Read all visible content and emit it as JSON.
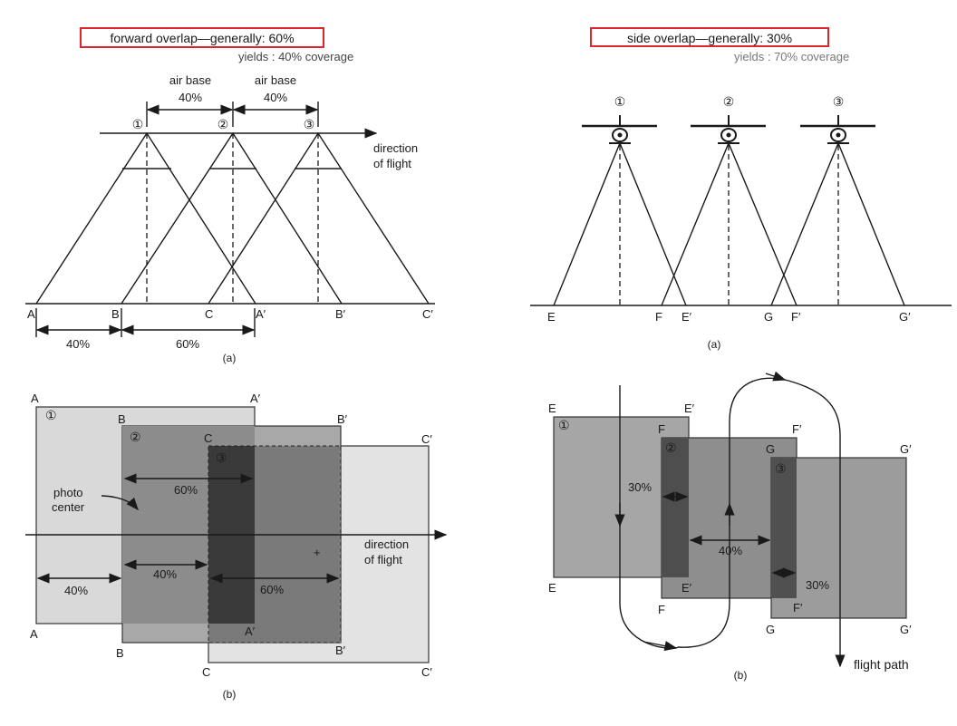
{
  "left_diagram": {
    "header": {
      "highlight": "forward overlap—generally: 60%",
      "subtitle": "yields : 40% coverage"
    },
    "part_a": {
      "air_base_label": "air base",
      "air_base_value": "40%",
      "station_markers": [
        "①",
        "②",
        "③"
      ],
      "direction_label": [
        "direction",
        "of flight"
      ],
      "ground_points": [
        "A",
        "B",
        "C",
        "A′",
        "B′",
        "C′"
      ],
      "dim_40": "40%",
      "dim_60": "60%",
      "caption": "(a)"
    },
    "part_b": {
      "corner_labels": {
        "photo1": [
          "A",
          "A′",
          "A",
          "A′"
        ],
        "photo2": [
          "B",
          "B′",
          "B",
          "B′"
        ],
        "photo3": [
          "C",
          "C′",
          "C",
          "C′"
        ]
      },
      "photo_numbers": [
        "①",
        "②",
        "③"
      ],
      "photo_center_label": [
        "photo",
        "center"
      ],
      "pct_60_top": "60%",
      "pct_40_left": "40%",
      "pct_40_mid": "40%",
      "pct_60_right": "60%",
      "direction_label": [
        "direction",
        "of flight"
      ],
      "plus_mark": "+",
      "caption": "(b)"
    }
  },
  "right_diagram": {
    "header": {
      "highlight": "side overlap—generally: 30%",
      "subtitle": "yields : 70% coverage"
    },
    "part_a": {
      "station_markers": [
        "①",
        "②",
        "③"
      ],
      "ground_points": [
        "E",
        "F",
        "E′",
        "G",
        "F′",
        "G′"
      ],
      "caption": "(a)"
    },
    "part_b": {
      "corner_labels": [
        "E",
        "E′",
        "E",
        "E′",
        "F",
        "F′",
        "F",
        "F′",
        "G",
        "G′",
        "G",
        "G′"
      ],
      "photo_numbers": [
        "①",
        "②",
        "③"
      ],
      "pct_30_left": "30%",
      "pct_40_mid": "40%",
      "pct_30_right": "30%",
      "flight_path_label": "flight path",
      "caption": "(b)"
    }
  }
}
